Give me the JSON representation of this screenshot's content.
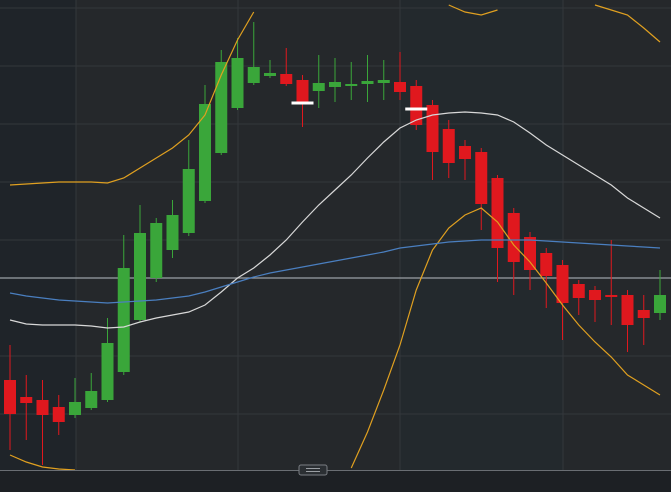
{
  "chart_data": {
    "type": "candlestick",
    "categories": [
      null,
      null,
      null,
      null,
      null,
      null,
      null,
      null,
      null,
      null,
      null,
      null,
      null,
      null,
      null,
      null,
      null,
      null,
      null,
      null,
      null,
      null,
      null,
      null,
      null,
      null,
      null,
      null,
      null,
      null,
      null,
      null,
      null,
      null,
      null,
      null,
      null,
      null,
      null,
      null,
      null
    ],
    "open": [
      90,
      73,
      70,
      63,
      55,
      62,
      70,
      98,
      150,
      192,
      220,
      237,
      269,
      317,
      362,
      387,
      394,
      396,
      390,
      379,
      383,
      384,
      386,
      387,
      388,
      384,
      365,
      341,
      324,
      318,
      292,
      257,
      233,
      217,
      205,
      186,
      180,
      175,
      175,
      160,
      157
    ],
    "close": [
      56,
      67,
      55,
      48,
      68,
      79,
      127,
      202,
      237,
      247,
      255,
      301,
      366,
      408,
      412,
      403,
      397,
      386,
      366,
      387,
      388,
      386,
      389,
      390,
      378,
      345,
      318,
      307,
      311,
      266,
      222,
      208,
      200,
      194,
      167,
      172,
      170,
      173,
      145,
      152,
      175
    ],
    "high": [
      125,
      95,
      90,
      75,
      92,
      97,
      152,
      235,
      265,
      252,
      270,
      330,
      385,
      420,
      432,
      448,
      410,
      422,
      395,
      415,
      412,
      408,
      415,
      410,
      418,
      390,
      370,
      350,
      330,
      322,
      295,
      262,
      238,
      222,
      210,
      190,
      184,
      230,
      180,
      175,
      200
    ],
    "low": [
      20,
      30,
      5,
      35,
      52,
      60,
      68,
      95,
      148,
      188,
      212,
      234,
      267,
      315,
      360,
      385,
      392,
      384,
      343,
      362,
      368,
      370,
      368,
      370,
      370,
      340,
      290,
      292,
      290,
      240,
      188,
      175,
      180,
      162,
      130,
      155,
      148,
      145,
      118,
      125,
      150
    ],
    "up_color": "#3aa63a",
    "down_color": "#e0181e",
    "series": [
      {
        "color": "#e0a020",
        "values": [
          285,
          286,
          287,
          288,
          288,
          288,
          287,
          292,
          302,
          312,
          322,
          335,
          355,
          395,
          430,
          458,
          null,
          null,
          null,
          null,
          null,
          null,
          null,
          null,
          null,
          null,
          null,
          465,
          458,
          455,
          460,
          null,
          null,
          null,
          null,
          null,
          465,
          460,
          455,
          442,
          428
        ]
      },
      {
        "color": "#e0a020",
        "values": [
          15,
          8,
          3,
          1,
          0,
          null,
          null,
          null,
          null,
          null,
          null,
          null,
          null,
          null,
          null,
          null,
          null,
          null,
          null,
          null,
          null,
          2,
          38,
          80,
          125,
          180,
          220,
          242,
          255,
          262,
          248,
          225,
          208,
          187,
          165,
          145,
          128,
          113,
          95,
          85,
          75
        ]
      },
      {
        "color": "#d8d8d8",
        "values": [
          150,
          146,
          145,
          145,
          145,
          144,
          142,
          143,
          148,
          152,
          155,
          158,
          165,
          178,
          192,
          202,
          215,
          230,
          248,
          265,
          280,
          295,
          312,
          328,
          342,
          350,
          355,
          357,
          358,
          357,
          355,
          348,
          337,
          325,
          315,
          305,
          295,
          285,
          272,
          262,
          252
        ]
      },
      {
        "color": "#4a7fc0",
        "values": [
          177,
          174,
          172,
          170,
          169,
          168,
          167,
          168,
          169,
          170,
          172,
          174,
          178,
          183,
          188,
          193,
          197,
          200,
          203,
          206,
          209,
          212,
          215,
          218,
          222,
          224,
          226,
          228,
          229,
          230,
          230,
          230,
          230,
          229,
          228,
          227,
          226,
          225,
          224,
          223,
          222
        ]
      }
    ],
    "markers": {
      "color": "#ffffff",
      "values": [
        null,
        null,
        null,
        null,
        null,
        null,
        null,
        null,
        null,
        null,
        null,
        null,
        null,
        null,
        null,
        null,
        null,
        null,
        367,
        null,
        null,
        null,
        null,
        null,
        null,
        361,
        null,
        null,
        null,
        null,
        null,
        null,
        null,
        null,
        null,
        null,
        null,
        null,
        null,
        null,
        null
      ]
    },
    "price_line": 192,
    "ylim": [
      0,
      470
    ]
  }
}
